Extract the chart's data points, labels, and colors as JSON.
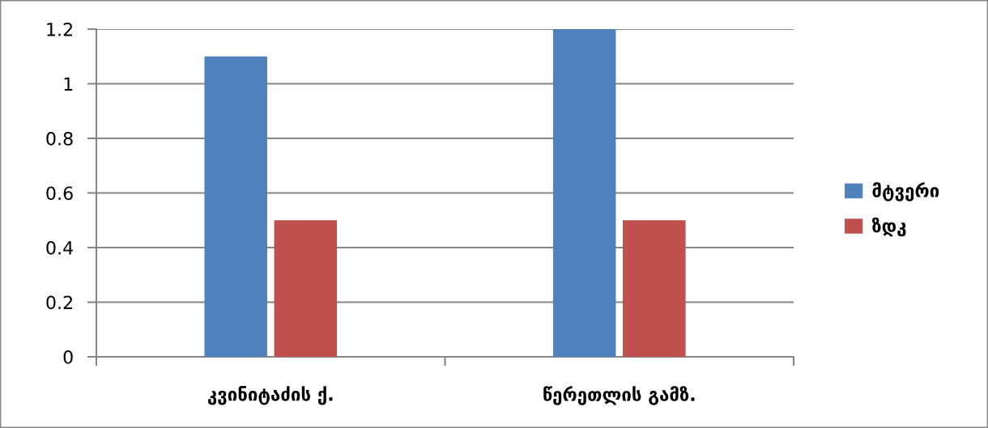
{
  "chart_data": {
    "type": "bar",
    "categories": [
      "კვინიტაძის ქ.",
      "წერეთლის გამზ."
    ],
    "series": [
      {
        "name": "მტვერი",
        "color": "#4f81bd",
        "values": [
          1.1,
          1.2
        ]
      },
      {
        "name": "ზდკ",
        "color": "#c0504d",
        "values": [
          0.5,
          0.5
        ]
      }
    ],
    "ylim": [
      0,
      1.2
    ],
    "yticks": [
      0,
      0.2,
      0.4,
      0.6,
      0.8,
      1,
      1.2
    ],
    "grid": "y",
    "legend": "right"
  }
}
